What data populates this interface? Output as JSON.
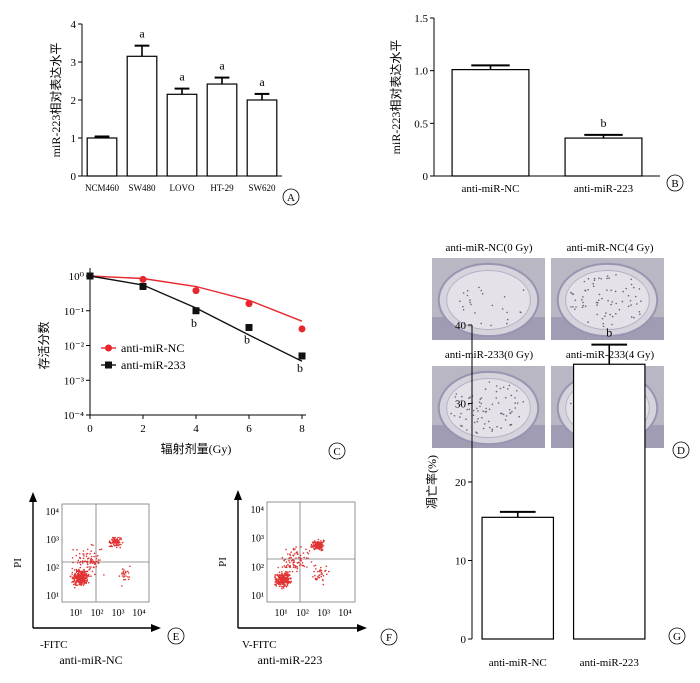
{
  "panels": {
    "A": {
      "letter": "A"
    },
    "B": {
      "letter": "B"
    },
    "C": {
      "letter": "C"
    },
    "D": {
      "letter": "D"
    },
    "E": {
      "letter": "E"
    },
    "F": {
      "letter": "F"
    },
    "G": {
      "letter": "G"
    }
  },
  "colony_images": [
    {
      "label": "anti-miR-NC(0 Gy)",
      "dots": 0.15
    },
    {
      "label": "anti-miR-NC(4 Gy)",
      "dots": 0.45
    },
    {
      "label": "anti-miR-233(0 Gy)",
      "dots": 0.5
    },
    {
      "label": "anti-miR-233(4 Gy)",
      "dots": 0.05
    }
  ],
  "flow": {
    "E": {
      "xlabel": "-FITC",
      "ylabel": "PI",
      "caption": "anti-miR-NC",
      "xticks": [
        "10¹",
        "10²",
        "10³",
        "10⁴"
      ],
      "yticks": [
        "10⁴",
        "10³",
        "10²",
        "10¹"
      ]
    },
    "F": {
      "xlabel": "V-FITC",
      "ylabel": "PI",
      "caption": "anti-miR-223",
      "xticks": [
        "10¹",
        "10²",
        "10³",
        "10⁴"
      ],
      "yticks": [
        "10⁴",
        "10³",
        "10²",
        "10¹"
      ]
    }
  },
  "chart_data": [
    {
      "panel": "A",
      "type": "bar",
      "ylabel": "miR-223相对表达水平",
      "categories": [
        "NCM460",
        "SW480",
        "LOVO",
        "HT-29",
        "SW620"
      ],
      "values": [
        1.0,
        3.15,
        2.15,
        2.42,
        2.0
      ],
      "errors": [
        0.04,
        0.28,
        0.15,
        0.17,
        0.16
      ],
      "annotations": [
        "",
        "a",
        "a",
        "a",
        "a"
      ],
      "ylim": [
        0,
        4
      ],
      "yticks": [
        "0",
        "1",
        "2",
        "3",
        "4"
      ]
    },
    {
      "panel": "B",
      "type": "bar",
      "ylabel": "miR-223相对表达水平",
      "categories": [
        "anti-miR-NC",
        "anti-miR-223"
      ],
      "values": [
        1.01,
        0.36
      ],
      "errors": [
        0.04,
        0.03
      ],
      "annotations": [
        "",
        "b"
      ],
      "ylim": [
        0,
        1.5
      ],
      "yticks": [
        "0",
        "0.5",
        "1.0",
        "1.5"
      ]
    },
    {
      "panel": "C",
      "type": "line",
      "xlabel": "辐射剂量(Gy)",
      "ylabel": "存活分数",
      "yscale": "log",
      "xlim": [
        0,
        8
      ],
      "ylim": [
        0.0001,
        1
      ],
      "xticks": [
        "0",
        "2",
        "4",
        "6",
        "8"
      ],
      "yticks": [
        "10⁰",
        "10⁻¹",
        "10⁻²",
        "10⁻³",
        "10⁻⁴"
      ],
      "legend_position": "left",
      "series": [
        {
          "name": "anti-miR-NC",
          "color": "#e8262e",
          "marker": "circle",
          "x": [
            0,
            2,
            4,
            6,
            8
          ],
          "y": [
            1.0,
            0.8,
            0.38,
            0.16,
            0.03
          ],
          "fit": [
            1.0,
            0.85,
            0.5,
            0.2,
            0.05
          ]
        },
        {
          "name": "anti-miR-233",
          "color": "#111111",
          "marker": "square",
          "x": [
            0,
            2,
            4,
            6,
            8
          ],
          "y": [
            1.0,
            0.5,
            0.1,
            0.033,
            0.005
          ],
          "fit": [
            1.0,
            0.55,
            0.12,
            0.02,
            0.0035
          ],
          "annotations": [
            "",
            "",
            "b",
            "b",
            "b"
          ]
        }
      ]
    },
    {
      "panel": "G",
      "type": "bar",
      "ylabel": "凋亡率(%)",
      "categories": [
        "anti-miR-NC",
        "anti-miR-223"
      ],
      "values": [
        15.5,
        35.0
      ],
      "errors": [
        0.7,
        2.5
      ],
      "annotations": [
        "",
        "b"
      ],
      "ylim": [
        0,
        40
      ],
      "yticks": [
        "0",
        "10",
        "20",
        "30",
        "40"
      ]
    }
  ]
}
